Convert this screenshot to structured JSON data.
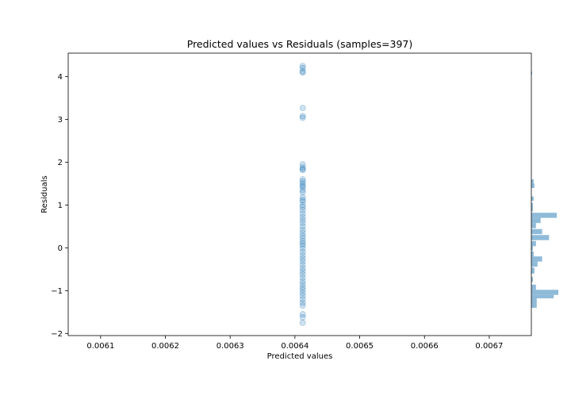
{
  "chart_data": {
    "type": "scatter",
    "title": "Predicted values vs Residuals (samples=397)",
    "xlabel": "Predicted values",
    "ylabel": "Residuals",
    "xlim": [
      0.00605,
      0.006765
    ],
    "ylim": [
      -2.05,
      4.55
    ],
    "xticks": [
      0.0061,
      0.0062,
      0.0063,
      0.0064,
      0.0065,
      0.0066,
      0.0067
    ],
    "xtick_labels": [
      "0.0061",
      "0.0062",
      "0.0063",
      "0.0064",
      "0.0065",
      "0.0066",
      "0.0067"
    ],
    "yticks": [
      -2,
      -1,
      0,
      1,
      2,
      3,
      4
    ],
    "ytick_labels": [
      "−2",
      "−1",
      "0",
      "1",
      "2",
      "3",
      "4"
    ],
    "grid": false,
    "point_color": "#1f77b4",
    "points": {
      "x": 0.006412,
      "y": [
        4.25,
        4.2,
        4.12,
        4.1,
        3.27,
        3.08,
        3.04,
        1.95,
        1.88,
        1.84,
        1.82,
        1.6,
        1.55,
        1.5,
        1.45,
        1.42,
        1.35,
        1.3,
        1.18,
        1.12,
        1.08,
        1.0,
        0.95,
        0.88,
        0.8,
        0.72,
        0.65,
        0.58,
        0.5,
        0.42,
        0.35,
        0.28,
        0.22,
        0.15,
        0.1,
        0.05,
        -0.02,
        -0.1,
        -0.18,
        -0.25,
        -0.32,
        -0.4,
        -0.48,
        -0.55,
        -0.62,
        -0.7,
        -0.78,
        -0.85,
        -0.92,
        -0.98,
        -1.05,
        -1.12,
        -1.2,
        -1.28,
        -1.35,
        -1.55,
        -1.62,
        -1.75
      ]
    },
    "residual_histogram": {
      "bins": [
        {
          "y0": 4.05,
          "y1": 4.12,
          "count": 1
        },
        {
          "y0": 1.5,
          "y1": 1.6,
          "count": 3
        },
        {
          "y0": 1.4,
          "y1": 1.5,
          "count": 4
        },
        {
          "y0": 1.1,
          "y1": 1.2,
          "count": 3
        },
        {
          "y0": 0.95,
          "y1": 1.05,
          "count": 2
        },
        {
          "y0": 0.85,
          "y1": 0.95,
          "count": 2
        },
        {
          "y0": 0.7,
          "y1": 0.82,
          "count": 33
        },
        {
          "y0": 0.58,
          "y1": 0.7,
          "count": 12
        },
        {
          "y0": 0.46,
          "y1": 0.58,
          "count": 6
        },
        {
          "y0": 0.32,
          "y1": 0.44,
          "count": 14
        },
        {
          "y0": 0.18,
          "y1": 0.3,
          "count": 23
        },
        {
          "y0": 0.04,
          "y1": 0.16,
          "count": 6
        },
        {
          "y0": -0.06,
          "y1": 0.04,
          "count": 2
        },
        {
          "y0": -0.2,
          "y1": -0.08,
          "count": 3
        },
        {
          "y0": -0.32,
          "y1": -0.2,
          "count": 14
        },
        {
          "y0": -0.44,
          "y1": -0.32,
          "count": 8
        },
        {
          "y0": -0.6,
          "y1": -0.46,
          "count": 4
        },
        {
          "y0": -0.8,
          "y1": -0.68,
          "count": 2
        },
        {
          "y0": -0.98,
          "y1": -0.86,
          "count": 6
        },
        {
          "y0": -1.1,
          "y1": -0.98,
          "count": 35
        },
        {
          "y0": -1.18,
          "y1": -1.1,
          "count": 29
        },
        {
          "y0": -1.3,
          "y1": -1.18,
          "count": 7
        },
        {
          "y0": -1.4,
          "y1": -1.3,
          "count": 7
        }
      ],
      "color": "#1f77b4"
    }
  }
}
